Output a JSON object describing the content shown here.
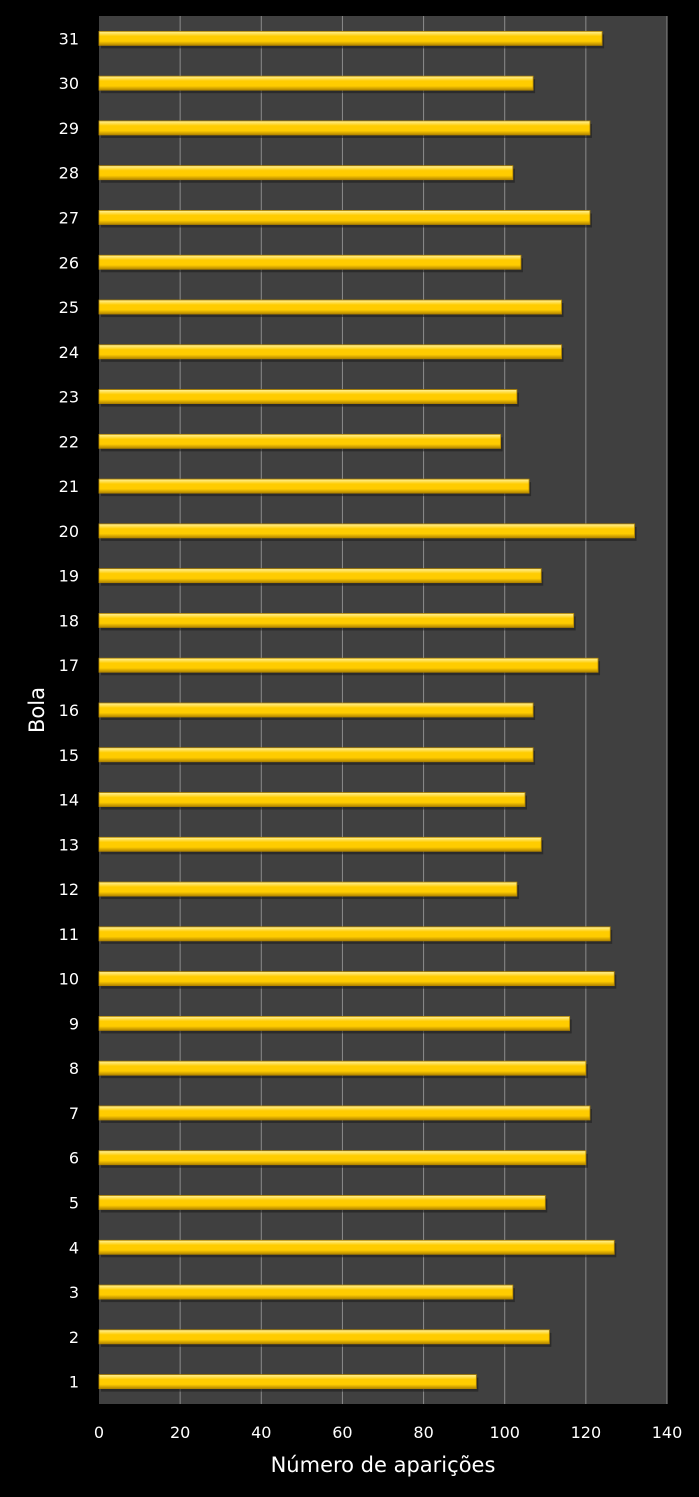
{
  "chart_data": {
    "type": "bar",
    "orientation": "horizontal",
    "categories": [
      "1",
      "2",
      "3",
      "4",
      "5",
      "6",
      "7",
      "8",
      "9",
      "10",
      "11",
      "12",
      "13",
      "14",
      "15",
      "16",
      "17",
      "18",
      "19",
      "20",
      "21",
      "22",
      "23",
      "24",
      "25",
      "26",
      "27",
      "28",
      "29",
      "30",
      "31"
    ],
    "series": [
      {
        "name": "Número de aparições",
        "values": [
          93,
          111,
          102,
          127,
          110,
          120,
          121,
          120,
          116,
          127,
          126,
          103,
          109,
          105,
          107,
          107,
          123,
          117,
          109,
          132,
          106,
          99,
          103,
          114,
          114,
          104,
          121,
          102,
          121,
          107,
          124
        ]
      }
    ],
    "xlabel": "Número de aparições",
    "ylabel": "Bola",
    "xlim": [
      0,
      140
    ],
    "xticks": [
      0,
      20,
      40,
      60,
      80,
      100,
      120,
      140
    ],
    "grid": "vertical",
    "colors": {
      "background": "#000000",
      "plot_area": "#404040",
      "gridline": "#8c8c8c",
      "bar": "#ffcc00",
      "bar_highlight": "#fff3a0",
      "bar_shadow": "#b38600",
      "text": "#ffffff"
    }
  }
}
